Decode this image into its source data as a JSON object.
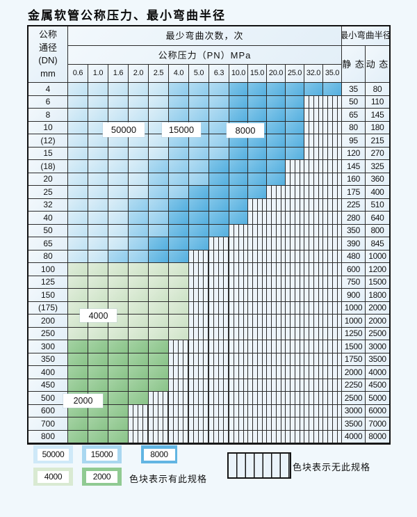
{
  "title": "金属软管公称压力、最小弯曲半径",
  "table": {
    "header": {
      "dn_lines": [
        "公称",
        "通径",
        "(DN)",
        "mm"
      ],
      "cycles_title": "最少弯曲次数，次",
      "pressure_title": "公称压力（PN）MPa",
      "pressures": [
        "0.6",
        "1.0",
        "1.6",
        "2.0",
        "2.5",
        "4.0",
        "5.0",
        "6.3",
        "10.0",
        "15.0",
        "20.0",
        "25.0",
        "32.0",
        "35.0"
      ],
      "radius_title": "最小弯曲半径",
      "static_label": "静 态",
      "dynamic_label": "动 态"
    },
    "rows": [
      {
        "dn": "4",
        "static": "35",
        "dynamic": "80",
        "zone": "blue",
        "light": 5,
        "mid": 8,
        "end": 14
      },
      {
        "dn": "6",
        "static": "50",
        "dynamic": "110",
        "zone": "blue",
        "light": 5,
        "mid": 8,
        "end": 12
      },
      {
        "dn": "8",
        "static": "65",
        "dynamic": "145",
        "zone": "blue",
        "light": 5,
        "mid": 8,
        "end": 12
      },
      {
        "dn": "10",
        "static": "80",
        "dynamic": "180",
        "zone": "blue",
        "light": 5,
        "mid": 8,
        "end": 12
      },
      {
        "dn": "(12)",
        "static": "95",
        "dynamic": "215",
        "zone": "blue",
        "light": 5,
        "mid": 8,
        "end": 12
      },
      {
        "dn": "15",
        "static": "120",
        "dynamic": "270",
        "zone": "blue",
        "light": 5,
        "mid": 8,
        "end": 12
      },
      {
        "dn": "(18)",
        "static": "145",
        "dynamic": "325",
        "zone": "blue",
        "light": 4,
        "mid": 7,
        "end": 11
      },
      {
        "dn": "20",
        "static": "160",
        "dynamic": "360",
        "zone": "blue",
        "light": 4,
        "mid": 7,
        "end": 11
      },
      {
        "dn": "25",
        "static": "175",
        "dynamic": "400",
        "zone": "blue",
        "light": 4,
        "mid": 6,
        "end": 10
      },
      {
        "dn": "32",
        "static": "225",
        "dynamic": "510",
        "zone": "blue",
        "light": 3,
        "mid": 5,
        "end": 9
      },
      {
        "dn": "40",
        "static": "280",
        "dynamic": "640",
        "zone": "blue",
        "light": 3,
        "mid": 5,
        "end": 9
      },
      {
        "dn": "50",
        "static": "350",
        "dynamic": "800",
        "zone": "blue",
        "light": 3,
        "mid": 5,
        "end": 8
      },
      {
        "dn": "65",
        "static": "390",
        "dynamic": "845",
        "zone": "blue",
        "light": 3,
        "mid": 4,
        "end": 7
      },
      {
        "dn": "80",
        "static": "480",
        "dynamic": "1000",
        "zone": "blue",
        "light": 2,
        "mid": 4,
        "end": 6
      },
      {
        "dn": "100",
        "static": "600",
        "dynamic": "1200",
        "zone": "green4",
        "end": 6
      },
      {
        "dn": "125",
        "static": "750",
        "dynamic": "1500",
        "zone": "green4",
        "end": 6
      },
      {
        "dn": "150",
        "static": "900",
        "dynamic": "1800",
        "zone": "green4",
        "end": 6
      },
      {
        "dn": "(175)",
        "static": "1000",
        "dynamic": "2000",
        "zone": "green4",
        "end": 6
      },
      {
        "dn": "200",
        "static": "1000",
        "dynamic": "2000",
        "zone": "green4",
        "end": 6
      },
      {
        "dn": "250",
        "static": "1250",
        "dynamic": "2500",
        "zone": "green4",
        "end": 6
      },
      {
        "dn": "300",
        "static": "1500",
        "dynamic": "3000",
        "zone": "green2",
        "end": 5
      },
      {
        "dn": "350",
        "static": "1750",
        "dynamic": "3500",
        "zone": "green2",
        "end": 5
      },
      {
        "dn": "400",
        "static": "2000",
        "dynamic": "4000",
        "zone": "green2",
        "end": 5
      },
      {
        "dn": "450",
        "static": "2250",
        "dynamic": "4500",
        "zone": "green2",
        "end": 5
      },
      {
        "dn": "500",
        "static": "2500",
        "dynamic": "5000",
        "zone": "green2",
        "end": 4
      },
      {
        "dn": "600",
        "static": "3000",
        "dynamic": "6000",
        "zone": "green2",
        "end": 3
      },
      {
        "dn": "700",
        "static": "3500",
        "dynamic": "7000",
        "zone": "green2",
        "end": 3
      },
      {
        "dn": "800",
        "static": "4000",
        "dynamic": "8000",
        "zone": "green2",
        "end": 3
      }
    ]
  },
  "callouts": [
    {
      "text": "50000"
    },
    {
      "text": "15000"
    },
    {
      "text": "8000"
    },
    {
      "text": "4000"
    },
    {
      "text": "2000"
    }
  ],
  "legend": {
    "swatches": [
      {
        "label": "50000",
        "color_key": "c50000"
      },
      {
        "label": "15000",
        "color_key": "c15000"
      },
      {
        "label": "8000",
        "color_key": "c8000"
      },
      {
        "label": "4000",
        "color_key": "c4000"
      },
      {
        "label": "2000",
        "color_key": "c2000"
      }
    ],
    "has_spec_label": "色块表示有此规格",
    "no_spec_label": "色块表示无此规格"
  },
  "colors": {
    "c50000": "#cfe9f8",
    "c15000": "#a9d7f0",
    "c8000": "#62b5e2",
    "c4000": "#d9ead2",
    "c2000": "#90ca92",
    "grid_line": "#2b2b2b",
    "page_bg": "#f1f8fc"
  }
}
